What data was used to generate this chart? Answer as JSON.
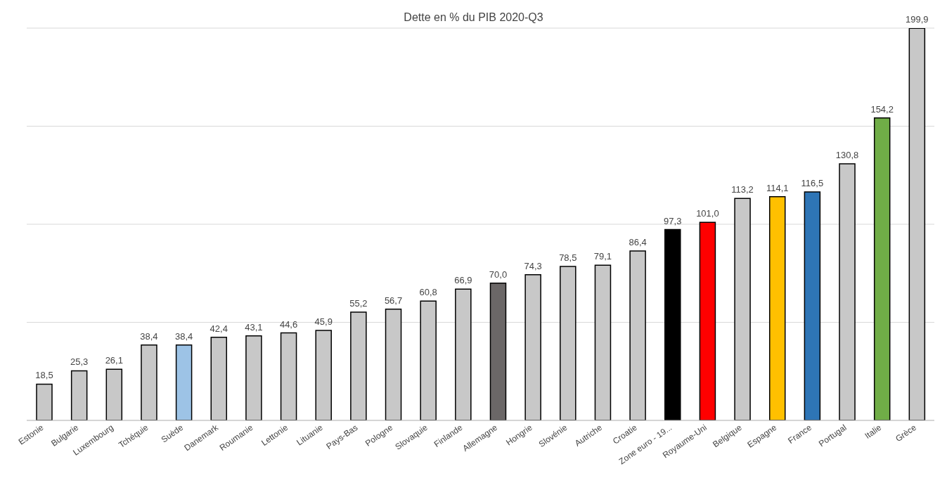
{
  "chart_data": {
    "type": "bar",
    "title": "Dette en % du PIB 2020-Q3",
    "categories": [
      "Estonie",
      "Bulgarie",
      "Luxembourg",
      "Tchéquie",
      "Suède",
      "Danemark",
      "Roumanie",
      "Lettonie",
      "Lituanie",
      "Pays-Bas",
      "Pologne",
      "Slovaquie",
      "Finlande",
      "Allemagne",
      "Hongrie",
      "Slovénie",
      "Autriche",
      "Croatie",
      "Zone euro - 19...",
      "Royaume-Uni",
      "Belgique",
      "Espagne",
      "France",
      "Portugal",
      "Italie",
      "Grèce"
    ],
    "values": [
      18.5,
      25.3,
      26.1,
      38.4,
      38.4,
      42.4,
      43.1,
      44.6,
      45.9,
      55.2,
      56.7,
      60.8,
      66.9,
      70.0,
      74.3,
      78.5,
      79.1,
      86.4,
      97.3,
      101.0,
      113.2,
      114.1,
      116.5,
      130.8,
      154.2,
      199.9
    ],
    "value_labels": [
      "18,5",
      "25,3",
      "26,1",
      "38,4",
      "38,4",
      "42,4",
      "43,1",
      "44,6",
      "45,9",
      "55,2",
      "56,7",
      "60,8",
      "66,9",
      "70,0",
      "74,3",
      "78,5",
      "79,1",
      "86,4",
      "97,3",
      "101,0",
      "113,2",
      "114,1",
      "116,5",
      "130,8",
      "154,2",
      "199,9"
    ],
    "colors": [
      "#c8c8c8",
      "#c8c8c8",
      "#c8c8c8",
      "#c8c8c8",
      "#9dc3e6",
      "#c8c8c8",
      "#c8c8c8",
      "#c8c8c8",
      "#c8c8c8",
      "#c8c8c8",
      "#c8c8c8",
      "#c8c8c8",
      "#c8c8c8",
      "#6b6767",
      "#c8c8c8",
      "#c8c8c8",
      "#c8c8c8",
      "#c8c8c8",
      "#000000",
      "#ff0000",
      "#c8c8c8",
      "#ffc000",
      "#2e75b6",
      "#c8c8c8",
      "#70ad47",
      "#c8c8c8"
    ],
    "ylim": [
      0,
      200
    ],
    "grid": "y",
    "tick_labels": "x",
    "legend": false
  }
}
